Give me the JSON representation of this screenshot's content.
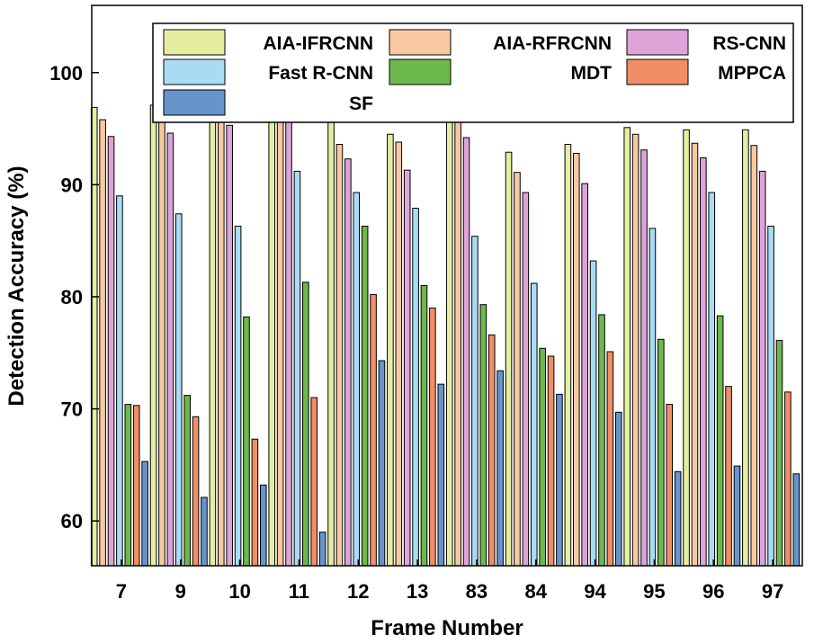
{
  "chart_data": {
    "type": "bar",
    "xlabel": "Frame Number",
    "ylabel": "Detection Accuracy (%)",
    "ylim": [
      56,
      106
    ],
    "yticks": [
      60,
      70,
      80,
      90,
      100
    ],
    "categories": [
      "7",
      "9",
      "10",
      "11",
      "12",
      "13",
      "83",
      "84",
      "94",
      "95",
      "96",
      "97"
    ],
    "legend_position": "top-right",
    "series": [
      {
        "name": "AIA-IFRCNN",
        "color": "#e5eea0",
        "values": [
          96.9,
          97.1,
          97.2,
          98.6,
          95.7,
          94.5,
          96.3,
          92.9,
          93.6,
          95.1,
          94.9,
          94.9
        ]
      },
      {
        "name": "AIA-RFRCNN",
        "color": "#f8c9a0",
        "values": [
          95.8,
          96.4,
          96.9,
          98.2,
          93.6,
          93.8,
          95.8,
          91.1,
          92.8,
          94.5,
          93.7,
          93.5
        ]
      },
      {
        "name": "RS-CNN",
        "color": "#dea4d8",
        "values": [
          94.3,
          94.6,
          95.3,
          97.6,
          92.3,
          91.3,
          94.2,
          89.3,
          90.1,
          93.1,
          92.4,
          91.2
        ]
      },
      {
        "name": "Fast R-CNN",
        "color": "#a9dcf4",
        "values": [
          89.0,
          87.4,
          86.3,
          91.2,
          89.3,
          87.9,
          85.4,
          81.2,
          83.2,
          86.1,
          89.3,
          86.3
        ]
      },
      {
        "name": "MDT",
        "color": "#6db84a",
        "values": [
          70.4,
          71.2,
          78.2,
          81.3,
          86.3,
          81.0,
          79.3,
          75.4,
          78.4,
          76.2,
          78.3,
          76.1
        ]
      },
      {
        "name": "MPPCA",
        "color": "#f08e66",
        "values": [
          70.3,
          69.3,
          67.3,
          71.0,
          80.2,
          79.0,
          76.6,
          74.7,
          75.1,
          70.4,
          72.0,
          71.5
        ]
      },
      {
        "name": "SF",
        "color": "#6794cb",
        "values": [
          65.3,
          62.1,
          63.2,
          59.0,
          74.3,
          72.2,
          73.4,
          71.3,
          69.7,
          64.4,
          64.9,
          64.2
        ]
      }
    ]
  }
}
